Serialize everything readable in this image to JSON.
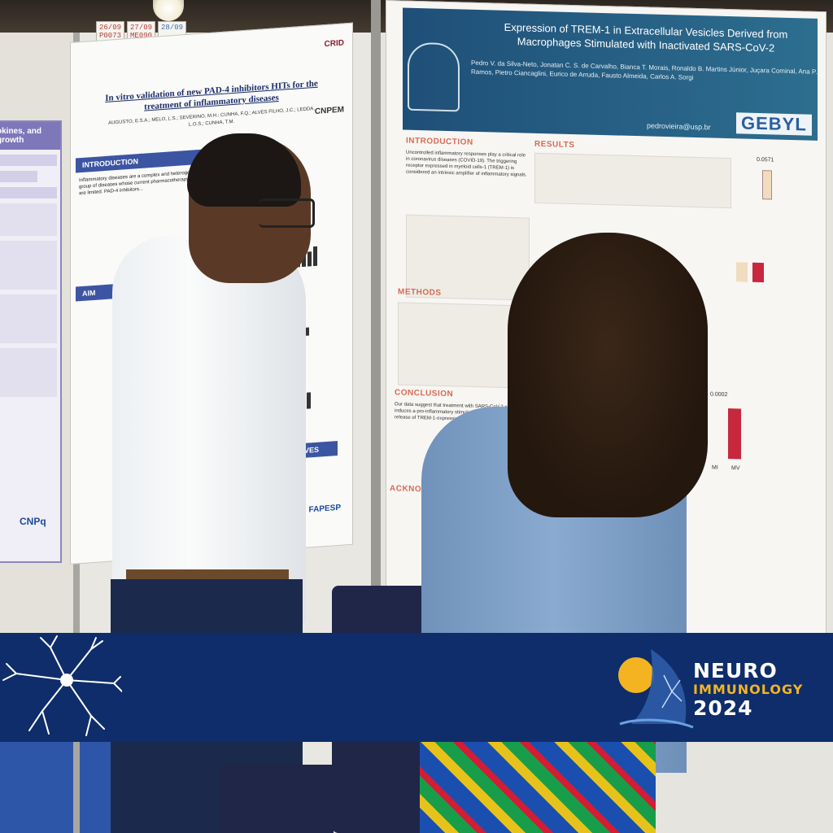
{
  "booth_signs": [
    {
      "line1": "26/09",
      "line2": "P0073"
    },
    {
      "line1": "27/09",
      "line2": "ME090"
    },
    {
      "line1": "28/09",
      "line2": ""
    }
  ],
  "left_poster": {
    "heading": "okines, and growth"
  },
  "center_poster": {
    "title": "In vitro validation of new PAD-4 inhibitors HITs for the treatment of inflammatory diseases",
    "authors": "AUGUSTO, E.S.A.; MELO, L.S.; SEVERINO, M.H.; CUNHA, F.Q.; ALVES FILHO, J.C.; LEDDA, L.O.S.; CUNHA, T.M.",
    "sections": {
      "introduction": "INTRODUCTION",
      "aim": "AIM",
      "perspectives": "RSPECTIVES"
    },
    "logos": {
      "top": "CRID",
      "cnpem": "CNPEM",
      "fapesp": "FAPESP",
      "cnpq": "CNPq"
    }
  },
  "right_poster": {
    "title": "Expression of TREM-1 in Extracellular Vesicles Derived from Macrophages Stimulated with Inactivated SARS-CoV-2",
    "authors": "Pedro V. da Silva-Neto, Jonatan C. S. de Carvalho, Bianca T. Morais, Ronaldo B. Martins Júnior, Juçara Cominal, Ana P. Ramos, Pietro Ciancaglini, Eurico de Arruda, Fausto Almeida, Carlos A. Sorgi",
    "email": "pedrovieira@usp.br",
    "brand": "GEBYL",
    "sections": {
      "introduction": "INTRODUCTION",
      "results": "RESULTS",
      "methods": "METHODS",
      "conclusion": "CONCLUSION",
      "acknowledgement": "ACKNOWLEDGMENT"
    },
    "chart_labels": {
      "p1": "0.0571",
      "p2": "0.0002",
      "mi": "MI",
      "mv": "MV"
    }
  },
  "banner": {
    "line1": "NEURO",
    "line2": "IMMUNOLOGY",
    "line3": "2024",
    "colors": {
      "background": "#0e2d6a",
      "accent": "#f4b422",
      "text": "#ffffff"
    }
  }
}
